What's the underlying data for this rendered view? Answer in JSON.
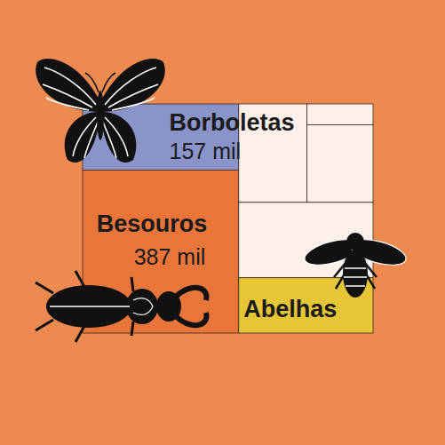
{
  "chart_data": {
    "type": "treemap",
    "categories": [
      "Borboletas",
      "Besouros",
      null,
      null,
      null,
      null,
      "Abelhas"
    ],
    "values": [
      157,
      387,
      102,
      21,
      78,
      154,
      113
    ],
    "value_labels": [
      "157 mil",
      "387 mil",
      null,
      null,
      null,
      null,
      null
    ],
    "colors": [
      "#8a94c8",
      "#e8763a",
      "#fdf0e8",
      "#fdf0e8",
      "#fdf0e8",
      "#fdf0e8",
      "#e6c637"
    ],
    "data_labels": true,
    "tick_labels": false
  }
}
